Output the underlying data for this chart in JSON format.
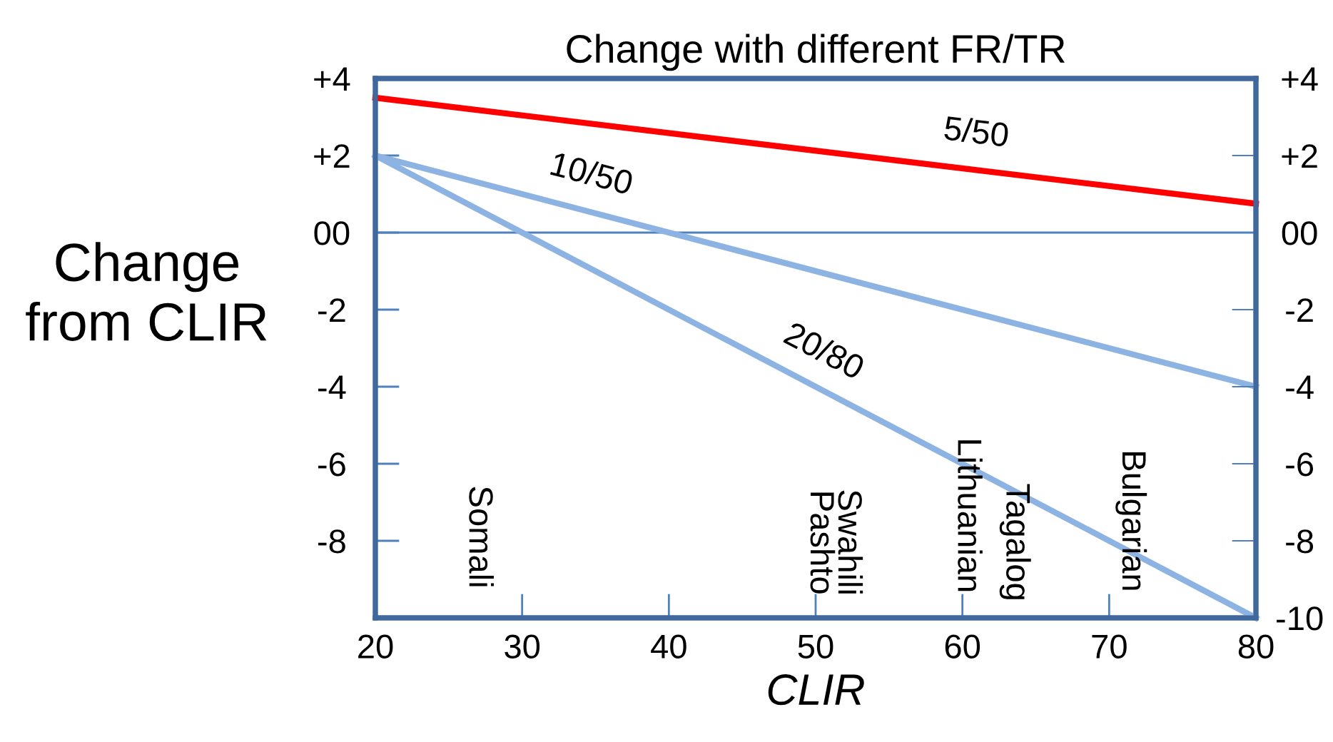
{
  "chart_data": {
    "type": "line",
    "title": "Change with different FR/TR",
    "xlabel": "CLIR",
    "ylabel": "Change\nfrom CLIR",
    "x": [
      20,
      80
    ],
    "series": [
      {
        "name": "5/50",
        "color": "#ff0000",
        "values": [
          3.5,
          0.75
        ]
      },
      {
        "name": "10/50",
        "color": "#8db3e2",
        "values": [
          2,
          -4
        ]
      },
      {
        "name": "20/80",
        "color": "#8db3e2",
        "values": [
          2,
          -10
        ]
      }
    ],
    "xlim": [
      20,
      80
    ],
    "ylim": [
      -10,
      4
    ],
    "xticks": [
      20,
      30,
      40,
      50,
      60,
      70,
      80
    ],
    "yticks": [
      {
        "value": -10,
        "label": null
      },
      -8,
      -6,
      -4,
      -2,
      {
        "value": 0,
        "label": "00"
      },
      {
        "value": 2,
        "label": "+2"
      },
      {
        "value": 4,
        "label": "+4"
      }
    ],
    "y2lim": [
      -10,
      4
    ],
    "y2ticks": [
      -10,
      -8,
      -6,
      -4,
      -2,
      {
        "value": 0,
        "label": "00"
      },
      {
        "value": 2,
        "label": "+2"
      },
      {
        "value": 4,
        "label": "+4"
      }
    ],
    "ref_lines": [
      {
        "axis": "y",
        "value": 0,
        "color": "#4f81bd"
      }
    ],
    "annotations": [
      "Somali",
      "Swahili\nPashto",
      "Lithuanian",
      "Tagalog",
      "Bulgarian"
    ],
    "grid": false,
    "legend": false,
    "marker": "none",
    "line_style": "solid"
  }
}
